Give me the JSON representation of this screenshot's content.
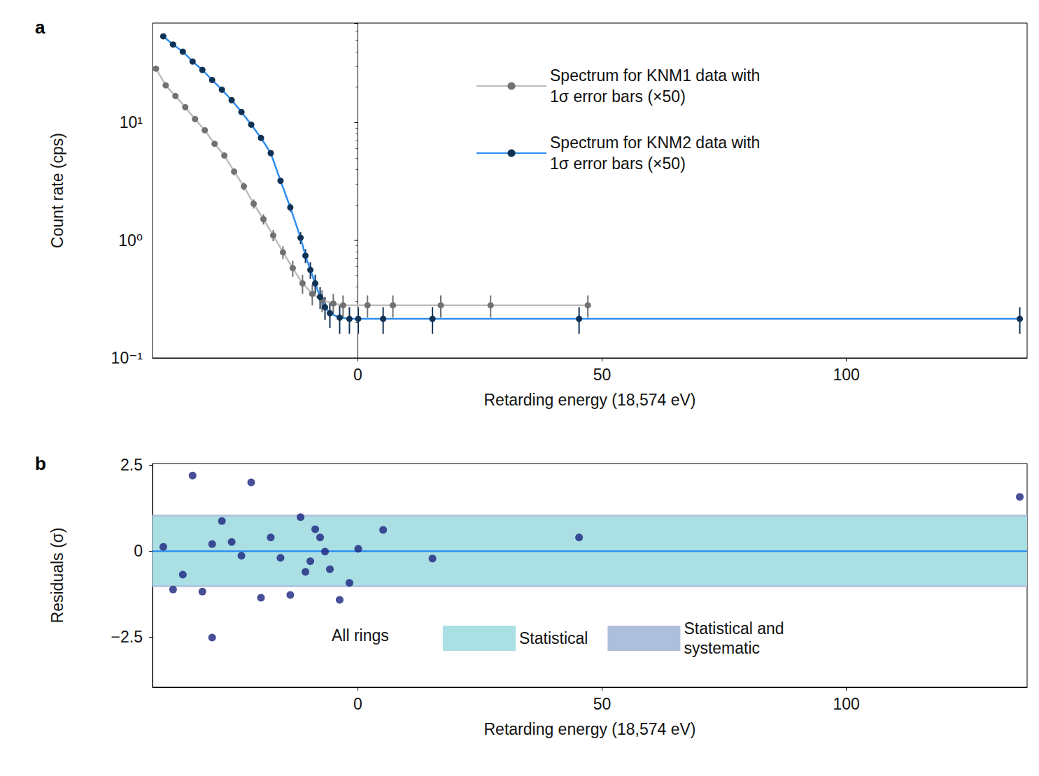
{
  "chart_data": [
    {
      "panel": "a",
      "type": "line",
      "xlabel": "Retarding energy (18,574 eV)",
      "ylabel": "Count rate (cps)",
      "log": "y",
      "xlim": [
        -42,
        137
      ],
      "xticks": [
        0,
        50,
        100
      ],
      "ylim": [
        0.1,
        70
      ],
      "yticks": [
        {
          "value": 0.1,
          "label": "10⁻¹"
        },
        {
          "value": 1,
          "label": "10⁰"
        },
        {
          "value": 10,
          "label": "10¹"
        }
      ],
      "legend": "upper right",
      "marker": "circle",
      "series": [
        {
          "name": "Spectrum for KNM1 data with 1σ error bars (×50)",
          "color": "#bdbdbd",
          "x": [
            -41.3,
            -39.3,
            -37.3,
            -35.3,
            -33.3,
            -31.3,
            -29.3,
            -27.3,
            -25.3,
            -23.3,
            -21.3,
            -19.3,
            -17.3,
            -15.3,
            -13.3,
            -11.3,
            -9.3,
            -7.3,
            -5.0,
            -3.0,
            2.0,
            7.2,
            17.0,
            27.2,
            47.1
          ],
          "values": [
            28.7,
            20.7,
            16.8,
            13.5,
            10.7,
            8.6,
            6.6,
            5.25,
            3.83,
            2.87,
            2.04,
            1.51,
            1.1,
            0.79,
            0.58,
            0.43,
            0.35,
            0.31,
            0.29,
            0.28,
            0.28,
            0.28,
            0.28,
            0.28,
            0.28
          ],
          "errors": [
            0.7,
            0.6,
            0.55,
            0.5,
            0.45,
            0.4,
            0.35,
            0.3,
            0.25,
            0.22,
            0.18,
            0.15,
            0.12,
            0.1,
            0.09,
            0.08,
            0.07,
            0.065,
            0.06,
            0.06,
            0.06,
            0.06,
            0.06,
            0.06,
            0.06
          ]
        },
        {
          "name": "Spectrum for KNM2 data with 1σ error bars (×50)",
          "color": "#2e8ef0",
          "x": [
            -39.8,
            -37.8,
            -35.8,
            -33.8,
            -31.8,
            -29.8,
            -27.8,
            -25.8,
            -23.8,
            -21.8,
            -19.8,
            -17.8,
            -15.8,
            -13.8,
            -11.7,
            -10.7,
            -9.7,
            -8.7,
            -7.7,
            -6.7,
            -5.7,
            -3.7,
            -1.7,
            0.1,
            5.2,
            15.3,
            45.3,
            135.5
          ],
          "values": [
            54,
            46,
            40,
            33,
            28,
            23,
            19,
            15.5,
            12.3,
            9.6,
            7.4,
            5.5,
            3.2,
            1.9,
            1.05,
            0.74,
            0.56,
            0.43,
            0.33,
            0.27,
            0.24,
            0.22,
            0.215,
            0.215,
            0.215,
            0.215,
            0.215,
            0.215
          ],
          "errors": [
            0.8,
            0.7,
            0.7,
            0.6,
            0.6,
            0.5,
            0.5,
            0.4,
            0.4,
            0.35,
            0.3,
            0.25,
            0.2,
            0.15,
            0.12,
            0.1,
            0.09,
            0.08,
            0.07,
            0.06,
            0.06,
            0.06,
            0.055,
            0.055,
            0.055,
            0.055,
            0.055,
            0.055
          ]
        }
      ]
    },
    {
      "panel": "b",
      "type": "scatter",
      "xlabel": "Retarding energy (18,574 eV)",
      "ylabel": "Residuals (σ)",
      "xlim": [
        -42,
        137
      ],
      "xticks": [
        0,
        50,
        100
      ],
      "ylim": [
        -3.96,
        2.54
      ],
      "yticks": [
        {
          "value": -2.5,
          "label": "−2.5"
        },
        0,
        2.5
      ],
      "legend_title": "All rings",
      "legend": "lower center",
      "marker": "circle",
      "reference": 0,
      "bands": [
        {
          "name": "Statistical and systematic",
          "color": "#aebfdc",
          "lower": -1.05,
          "upper": 1.05
        },
        {
          "name": "Statistical",
          "color": "#aadfe4",
          "lower": -1,
          "upper": 1
        }
      ],
      "series": [
        {
          "color": "#1a237e",
          "x": [
            -39.8,
            -37.8,
            -35.8,
            -33.8,
            -31.8,
            -29.8,
            -29.8,
            -27.8,
            -25.8,
            -23.8,
            -21.8,
            -19.8,
            -17.8,
            -15.8,
            -13.8,
            -11.7,
            -10.7,
            -9.7,
            -8.7,
            -7.7,
            -6.7,
            -5.7,
            -3.7,
            -1.7,
            0.1,
            5.2,
            15.3,
            45.3,
            135.5
          ],
          "values": [
            0.12,
            -1.12,
            -0.69,
            2.19,
            -1.18,
            0.2,
            -2.52,
            0.87,
            0.26,
            -0.14,
            1.99,
            -1.36,
            0.39,
            -0.2,
            -1.28,
            0.98,
            -0.61,
            -0.3,
            0.63,
            0.39,
            -0.02,
            -0.53,
            -1.42,
            -0.93,
            0.06,
            0.61,
            -0.22,
            0.39,
            1.57
          ]
        }
      ]
    }
  ]
}
